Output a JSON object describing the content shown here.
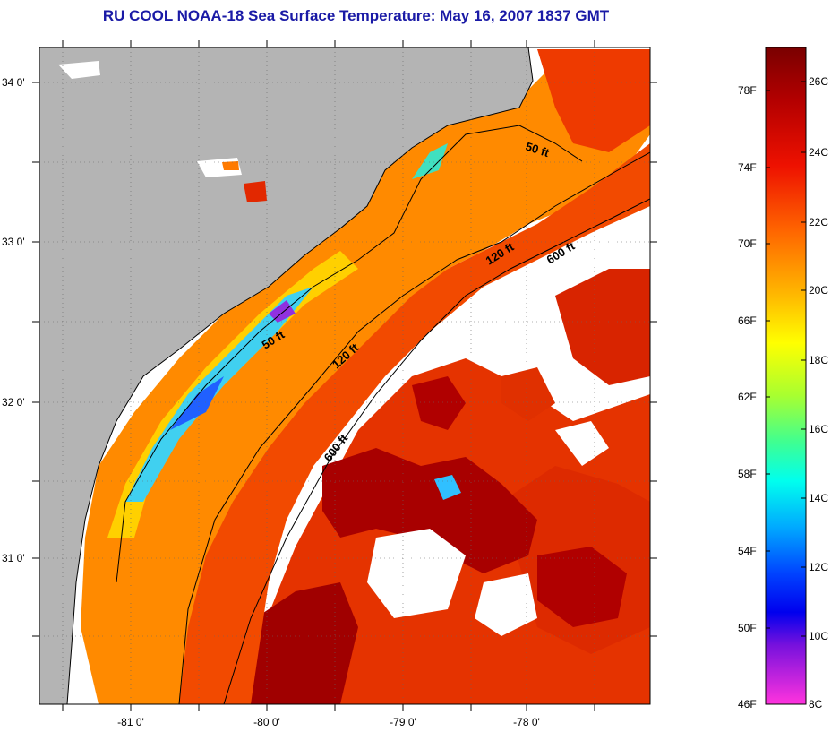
{
  "title": "RU COOL  NOAA-18  Sea Surface Temperature:  May 16, 2007 1837 GMT",
  "map": {
    "lat_ticks": [
      "34 0'",
      "33 0'",
      "32 0'",
      "31 0'"
    ],
    "lon_ticks": [
      "-81 0'",
      "-80 0'",
      "-79 0'",
      "-78 0'"
    ],
    "contour_labels": {
      "c50_north": "50 ft",
      "c50_south": "50 ft",
      "c120_north": "120 ft",
      "c120_south": "120 ft",
      "c600_north": "600 ft",
      "c600_south": "600 ft"
    },
    "colors": {
      "land": "#b4b4b4",
      "cloud": "#ffffff",
      "shelf_water": "#ff8c00",
      "warm_water": "#e62800",
      "gulf_stream": "#a00000",
      "cool_nearshore": "#40c8ff"
    }
  },
  "colorbar": {
    "f_labels": [
      "78F",
      "74F",
      "70F",
      "66F",
      "62F",
      "58F",
      "54F",
      "50F",
      "46F"
    ],
    "c_labels": [
      "26C",
      "24C",
      "22C",
      "20C",
      "18C",
      "16C",
      "14C",
      "12C",
      "10C",
      "8C"
    ],
    "gradient_stops": [
      "#800000",
      "#cc0000",
      "#ff3300",
      "#ff8000",
      "#ffcc00",
      "#ffff00",
      "#80ff40",
      "#00ffcc",
      "#00ccff",
      "#0066ff",
      "#0000ff",
      "#8800cc",
      "#ff33cc"
    ]
  }
}
